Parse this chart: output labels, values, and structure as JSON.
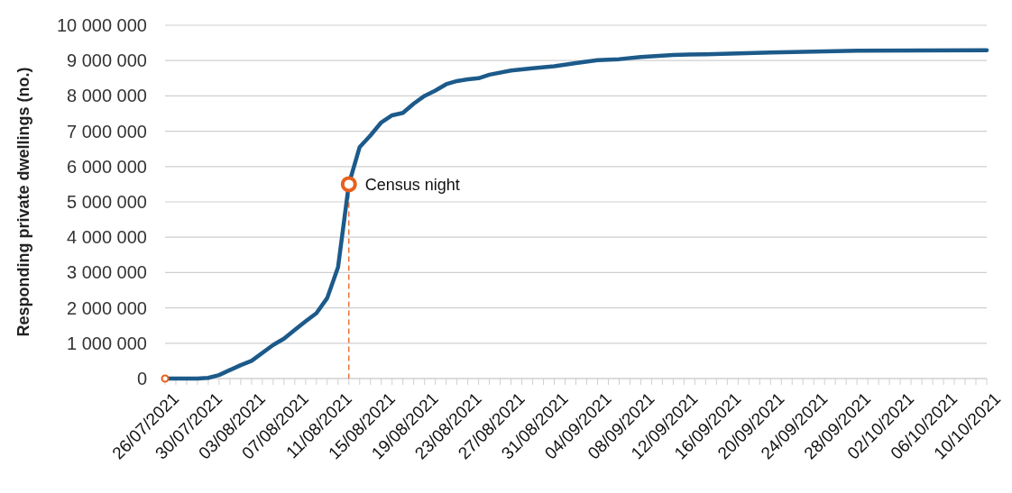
{
  "chart_data": {
    "type": "line",
    "ylabel": "Responding private dwellings (no.)",
    "x": [
      "2021-07-26",
      "2021-07-29",
      "2021-07-30",
      "2021-07-31",
      "2021-08-02",
      "2021-08-03",
      "2021-08-05",
      "2021-08-06",
      "2021-08-07",
      "2021-08-08",
      "2021-08-09",
      "2021-08-10",
      "2021-08-11",
      "2021-08-12",
      "2021-08-13",
      "2021-08-14",
      "2021-08-15",
      "2021-08-16",
      "2021-08-17",
      "2021-08-18",
      "2021-08-19",
      "2021-08-20",
      "2021-08-21",
      "2021-08-22",
      "2021-08-23",
      "2021-08-24",
      "2021-08-25",
      "2021-08-27",
      "2021-08-29",
      "2021-08-31",
      "2021-09-02",
      "2021-09-04",
      "2021-09-06",
      "2021-09-08",
      "2021-09-11",
      "2021-09-14",
      "2021-09-20",
      "2021-09-28",
      "2021-10-10"
    ],
    "series": [
      {
        "color": "#1c5a8a",
        "values": [
          0,
          0,
          20000,
          100000,
          380000,
          500000,
          950000,
          1130000,
          1380000,
          1620000,
          1850000,
          2280000,
          3150000,
          5500000,
          6550000,
          6880000,
          7250000,
          7450000,
          7520000,
          7780000,
          8000000,
          8150000,
          8330000,
          8420000,
          8470000,
          8500000,
          8600000,
          8720000,
          8780000,
          8840000,
          8930000,
          9010000,
          9040000,
          9100000,
          9160000,
          9180000,
          9230000,
          9280000,
          9290000
        ]
      }
    ],
    "annotations": [
      {
        "text": "Census night",
        "x": "2021-08-12",
        "y": 5500000
      }
    ],
    "xlim": [
      "2021-07-26",
      "2021-10-10"
    ],
    "xticks": [
      {
        "value": "2021-07-26",
        "label": "26/07/2021"
      },
      {
        "value": "2021-07-30",
        "label": "30/07/2021"
      },
      {
        "value": "2021-08-03",
        "label": "03/08/2021"
      },
      {
        "value": "2021-08-07",
        "label": "07/08/2021"
      },
      {
        "value": "2021-08-11",
        "label": "11/08/2021"
      },
      {
        "value": "2021-08-15",
        "label": "15/08/2021"
      },
      {
        "value": "2021-08-19",
        "label": "19/08/2021"
      },
      {
        "value": "2021-08-23",
        "label": "23/08/2021"
      },
      {
        "value": "2021-08-27",
        "label": "27/08/2021"
      },
      {
        "value": "2021-08-31",
        "label": "31/08/2021"
      },
      {
        "value": "2021-09-04",
        "label": "04/09/2021"
      },
      {
        "value": "2021-09-08",
        "label": "08/09/2021"
      },
      {
        "value": "2021-09-12",
        "label": "12/09/2021"
      },
      {
        "value": "2021-09-16",
        "label": "16/09/2021"
      },
      {
        "value": "2021-09-20",
        "label": "20/09/2021"
      },
      {
        "value": "2021-09-24",
        "label": "24/09/2021"
      },
      {
        "value": "2021-09-28",
        "label": "28/09/2021"
      },
      {
        "value": "2021-10-02",
        "label": "02/10/2021"
      },
      {
        "value": "2021-10-06",
        "label": "06/10/2021"
      },
      {
        "value": "2021-10-10",
        "label": "10/10/2021"
      }
    ],
    "ylim": [
      0,
      10000000
    ],
    "yticks": [
      {
        "value": 0,
        "label": "0"
      },
      {
        "value": 1000000,
        "label": "1 000 000"
      },
      {
        "value": 2000000,
        "label": "2 000 000"
      },
      {
        "value": 3000000,
        "label": "3 000 000"
      },
      {
        "value": 4000000,
        "label": "4 000 000"
      },
      {
        "value": 5000000,
        "label": "5 000 000"
      },
      {
        "value": 6000000,
        "label": "6 000 000"
      },
      {
        "value": 7000000,
        "label": "7 000 000"
      },
      {
        "value": 8000000,
        "label": "8 000 000"
      },
      {
        "value": 9000000,
        "label": "9 000 000"
      },
      {
        "value": 10000000,
        "label": "10 000 000"
      }
    ],
    "grid": "y",
    "marker": "none",
    "line_style": "solid"
  }
}
